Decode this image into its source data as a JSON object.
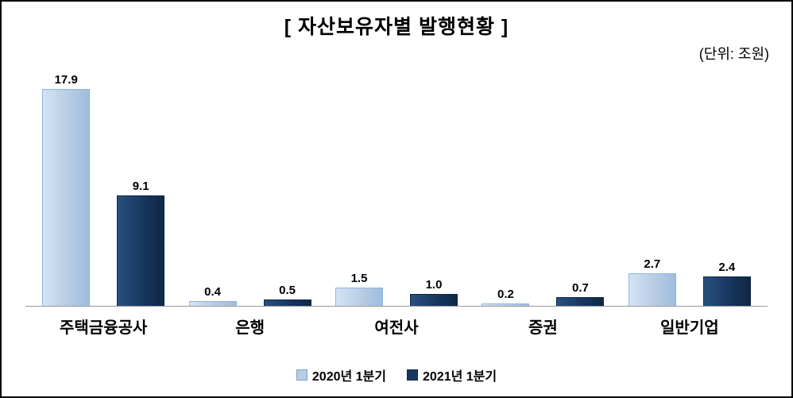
{
  "title": "[ 자산보유자별 발행현황 ]",
  "unit_label": "(단위: 조원)",
  "chart_data": {
    "type": "bar",
    "title": "[ 자산보유자별 발행현황 ]",
    "unit": "조원",
    "categories": [
      "주택금융공사",
      "은행",
      "여전사",
      "증권",
      "일반기업"
    ],
    "series": [
      {
        "name": "2020년 1분기",
        "color": "#b8cce4",
        "values": [
          17.9,
          0.4,
          1.5,
          0.2,
          2.7
        ]
      },
      {
        "name": "2021년 1분기",
        "color": "#17375e",
        "values": [
          9.1,
          0.5,
          1.0,
          0.7,
          2.4
        ]
      }
    ],
    "ylim": [
      0,
      18
    ],
    "grid": false,
    "legend_position": "bottom",
    "value_labels": true
  }
}
